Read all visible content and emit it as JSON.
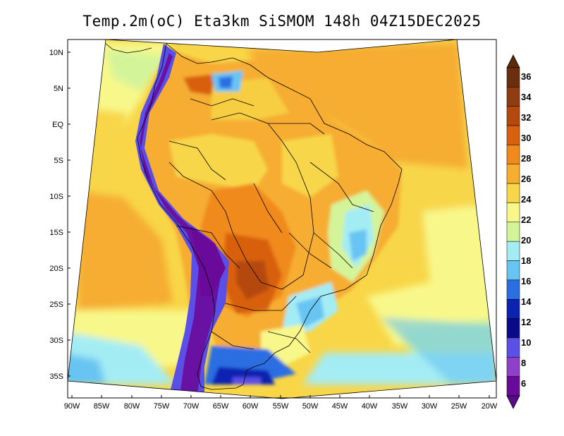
{
  "title": "Temp.2m(oC) Eta3km SiSMOM 148h 04Z15DEC2025",
  "lat_labels": [
    "10N",
    "5N",
    "EQ",
    "5S",
    "10S",
    "15S",
    "20S",
    "25S",
    "30S",
    "35S"
  ],
  "lon_labels": [
    "90W",
    "85W",
    "80W",
    "75W",
    "70W",
    "65W",
    "60W",
    "55W",
    "50W",
    "45W",
    "40W",
    "35W",
    "30W",
    "25W",
    "20W"
  ],
  "colorbar": {
    "labels": [
      "36",
      "34",
      "32",
      "30",
      "28",
      "26",
      "24",
      "22",
      "20",
      "18",
      "16",
      "14",
      "12",
      "10",
      "8",
      "6"
    ],
    "colors": [
      "#6b2f0f",
      "#8f3c10",
      "#b5480c",
      "#d8600e",
      "#f08a1c",
      "#f6ad30",
      "#f8d648",
      "#f8f88a",
      "#d4f49a",
      "#a4ecf4",
      "#68c4f2",
      "#2a6ee2",
      "#0c22b0",
      "#0a0a88",
      "#5a50e8",
      "#9040c8",
      "#6a0a9a"
    ],
    "top_color": "#5a2a0a",
    "bottom_color": "#5a0a8a"
  }
}
